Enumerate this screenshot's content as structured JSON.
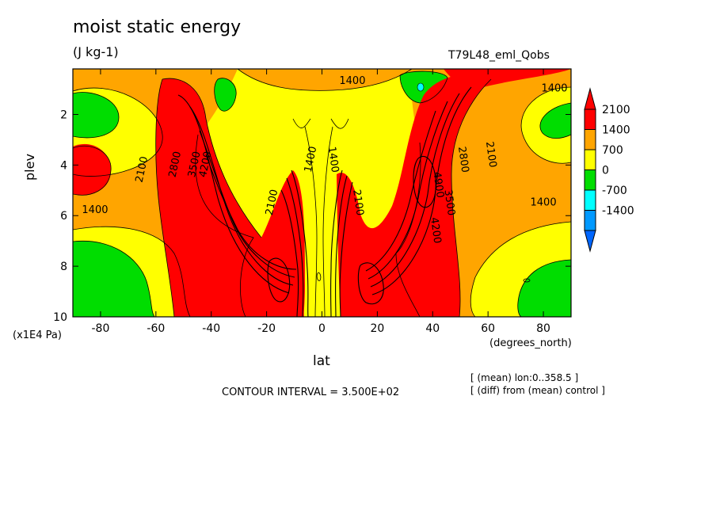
{
  "chart_data": {
    "type": "heatmap",
    "title": "moist static energy",
    "units": "(J kg-1)",
    "run_label": "T79L48_eml_Qobs",
    "xlabel": "lat",
    "ylabel": "plev",
    "x_unit": "(degrees_north)",
    "y_unit": "(x1E4 Pa)",
    "xlim": [
      -90,
      90
    ],
    "ylim": [
      10,
      0.2
    ],
    "x_ticks": [
      "-80",
      "-60",
      "-40",
      "-20",
      "0",
      "20",
      "40",
      "60",
      "80"
    ],
    "x_tick_values": [
      -80,
      -60,
      -40,
      -20,
      0,
      20,
      40,
      60,
      80
    ],
    "y_ticks": [
      "2",
      "4",
      "6",
      "8",
      "10"
    ],
    "y_tick_values": [
      2,
      4,
      6,
      8,
      10
    ],
    "contour_interval_text": "CONTOUR INTERVAL = 3.500E+02",
    "notes": [
      "[ (mean) lon:0..358.5 ]",
      "[ (diff) from (mean) control ]"
    ],
    "colorbar": {
      "levels": [
        "2100",
        "1400",
        "700",
        "0",
        "-700",
        "-1400"
      ],
      "colors": [
        "#ff0000",
        "#ffa500",
        "#ffff00",
        "#00dd00",
        "#00ffff",
        "#0099ff"
      ],
      "max_color": "#ff0000",
      "min_color": "#0066ff"
    },
    "contour_labels": [
      {
        "text": "1400",
        "lat": 11,
        "plev": 0.8
      },
      {
        "text": "1400",
        "lat": 84,
        "plev": 1.1
      },
      {
        "text": "1400",
        "lat": -82,
        "plev": 5.9
      },
      {
        "text": "1400",
        "lat": 80,
        "plev": 5.6
      },
      {
        "text": "1400",
        "lat": -3,
        "plev": 3.8
      },
      {
        "text": "1400",
        "lat": 3,
        "plev": 3.8
      },
      {
        "text": "2100",
        "lat": -64,
        "plev": 4.2
      },
      {
        "text": "2800",
        "lat": -52,
        "plev": 4.0
      },
      {
        "text": "3500",
        "lat": -45,
        "plev": 4.0
      },
      {
        "text": "4200",
        "lat": -41,
        "plev": 4.0
      },
      {
        "text": "2100",
        "lat": -17,
        "plev": 5.5
      },
      {
        "text": "2100",
        "lat": 60,
        "plev": 3.6
      },
      {
        "text": "2800",
        "lat": 50,
        "plev": 3.8
      },
      {
        "text": "4900",
        "lat": 41,
        "plev": 4.8
      },
      {
        "text": "3500",
        "lat": 45,
        "plev": 5.5
      },
      {
        "text": "4200",
        "lat": 40,
        "plev": 6.6
      },
      {
        "text": "2100",
        "lat": 12,
        "plev": 5.5
      }
    ]
  }
}
